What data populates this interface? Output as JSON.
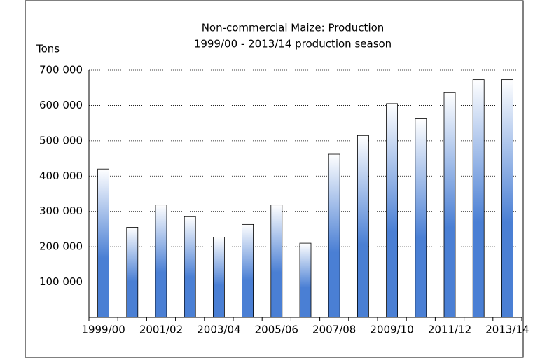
{
  "chart_data": {
    "type": "bar",
    "title": "Non-commercial Maize:  Production",
    "subtitle": "1999/00 - 2013/14 production season",
    "y_label": "Tons",
    "categories": [
      "1999/00",
      null,
      "2001/02",
      null,
      "2003/04",
      null,
      "2005/06",
      null,
      "2007/08",
      null,
      "2009/10",
      null,
      "2011/12",
      null,
      "2013/14"
    ],
    "values": [
      420000,
      255000,
      318000,
      285000,
      227000,
      263000,
      318000,
      210000,
      462000,
      515000,
      605000,
      562000,
      636000,
      673000,
      673000
    ],
    "color": "#4a7fd4",
    "ylim": [
      0,
      700000
    ],
    "yticks": [
      {
        "value": 100000,
        "label": "100 000"
      },
      {
        "value": 200000,
        "label": "200 000"
      },
      {
        "value": 300000,
        "label": "300 000"
      },
      {
        "value": 400000,
        "label": "400 000"
      },
      {
        "value": 500000,
        "label": "500 000"
      },
      {
        "value": 600000,
        "label": "600 000"
      },
      {
        "value": 700000,
        "label": "700 000"
      }
    ],
    "grid": true
  }
}
